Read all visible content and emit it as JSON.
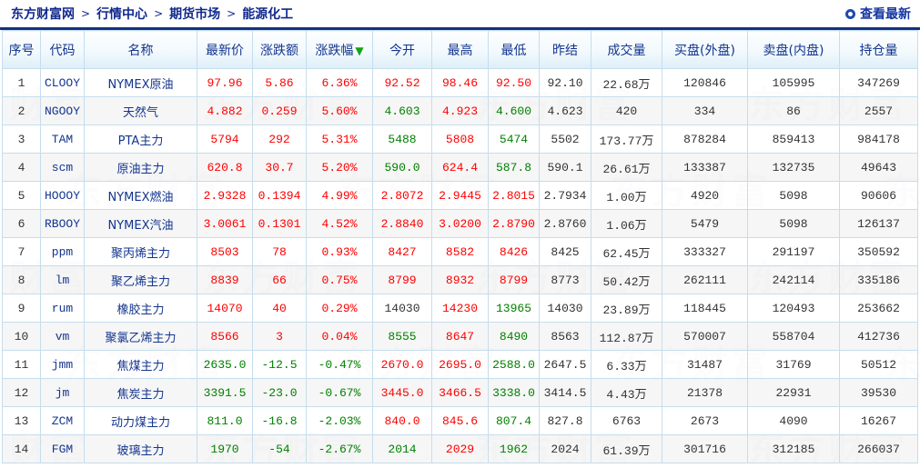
{
  "breadcrumb": {
    "separator": ">",
    "items": [
      "东方财富网",
      "行情中心",
      "期货市场",
      "能源化工"
    ]
  },
  "toolbar": {
    "refresh_label": "查看最新"
  },
  "watermark": {
    "text": "东方财富"
  },
  "colors": {
    "up": "#fe0000",
    "down": "#008000",
    "flat": "#333333",
    "link": "#13358e",
    "navy_line": "#16307c",
    "border": "#c5dded"
  },
  "table": {
    "columns": [
      {
        "label": "序号"
      },
      {
        "label": "代码"
      },
      {
        "label": "名称"
      },
      {
        "label": "最新价"
      },
      {
        "label": "涨跌额"
      },
      {
        "label": "涨跌幅",
        "sorted": "desc"
      },
      {
        "label": "今开"
      },
      {
        "label": "最高"
      },
      {
        "label": "最低"
      },
      {
        "label": "昨结"
      },
      {
        "label": "成交量"
      },
      {
        "label": "买盘(外盘)"
      },
      {
        "label": "卖盘(内盘)"
      },
      {
        "label": "持仓量"
      }
    ],
    "rows": [
      {
        "no": "1",
        "code": "CLOOY",
        "name": "NYMEX原油",
        "last": {
          "v": "97.96",
          "c": "up"
        },
        "change": {
          "v": "5.86",
          "c": "up"
        },
        "pct": {
          "v": "6.36%",
          "c": "up"
        },
        "open": {
          "v": "92.52",
          "c": "up"
        },
        "high": {
          "v": "98.46",
          "c": "up"
        },
        "low": {
          "v": "92.50",
          "c": "up"
        },
        "prev": "92.10",
        "volume": "22.68万",
        "buy": "120846",
        "sell": "105995",
        "oi": "347269"
      },
      {
        "no": "2",
        "code": "NGOOY",
        "name": "天然气",
        "last": {
          "v": "4.882",
          "c": "up"
        },
        "change": {
          "v": "0.259",
          "c": "up"
        },
        "pct": {
          "v": "5.60%",
          "c": "up"
        },
        "open": {
          "v": "4.603",
          "c": "down"
        },
        "high": {
          "v": "4.923",
          "c": "up"
        },
        "low": {
          "v": "4.600",
          "c": "down"
        },
        "prev": "4.623",
        "volume": "420",
        "buy": "334",
        "sell": "86",
        "oi": "2557"
      },
      {
        "no": "3",
        "code": "TAM",
        "name": "PTA主力",
        "last": {
          "v": "5794",
          "c": "up"
        },
        "change": {
          "v": "292",
          "c": "up"
        },
        "pct": {
          "v": "5.31%",
          "c": "up"
        },
        "open": {
          "v": "5488",
          "c": "down"
        },
        "high": {
          "v": "5808",
          "c": "up"
        },
        "low": {
          "v": "5474",
          "c": "down"
        },
        "prev": "5502",
        "volume": "173.77万",
        "buy": "878284",
        "sell": "859413",
        "oi": "984178"
      },
      {
        "no": "4",
        "code": "scm",
        "name": "原油主力",
        "last": {
          "v": "620.8",
          "c": "up"
        },
        "change": {
          "v": "30.7",
          "c": "up"
        },
        "pct": {
          "v": "5.20%",
          "c": "up"
        },
        "open": {
          "v": "590.0",
          "c": "down"
        },
        "high": {
          "v": "624.4",
          "c": "up"
        },
        "low": {
          "v": "587.8",
          "c": "down"
        },
        "prev": "590.1",
        "volume": "26.61万",
        "buy": "133387",
        "sell": "132735",
        "oi": "49643"
      },
      {
        "no": "5",
        "code": "HOOOY",
        "name": "NYMEX燃油",
        "last": {
          "v": "2.9328",
          "c": "up"
        },
        "change": {
          "v": "0.1394",
          "c": "up"
        },
        "pct": {
          "v": "4.99%",
          "c": "up"
        },
        "open": {
          "v": "2.8072",
          "c": "up"
        },
        "high": {
          "v": "2.9445",
          "c": "up"
        },
        "low": {
          "v": "2.8015",
          "c": "up"
        },
        "prev": "2.7934",
        "volume": "1.00万",
        "buy": "4920",
        "sell": "5098",
        "oi": "90606"
      },
      {
        "no": "6",
        "code": "RBOOY",
        "name": "NYMEX汽油",
        "last": {
          "v": "3.0061",
          "c": "up"
        },
        "change": {
          "v": "0.1301",
          "c": "up"
        },
        "pct": {
          "v": "4.52%",
          "c": "up"
        },
        "open": {
          "v": "2.8840",
          "c": "up"
        },
        "high": {
          "v": "3.0200",
          "c": "up"
        },
        "low": {
          "v": "2.8790",
          "c": "up"
        },
        "prev": "2.8760",
        "volume": "1.06万",
        "buy": "5479",
        "sell": "5098",
        "oi": "126137"
      },
      {
        "no": "7",
        "code": "ppm",
        "name": "聚丙烯主力",
        "last": {
          "v": "8503",
          "c": "up"
        },
        "change": {
          "v": "78",
          "c": "up"
        },
        "pct": {
          "v": "0.93%",
          "c": "up"
        },
        "open": {
          "v": "8427",
          "c": "up"
        },
        "high": {
          "v": "8582",
          "c": "up"
        },
        "low": {
          "v": "8426",
          "c": "up"
        },
        "prev": "8425",
        "volume": "62.45万",
        "buy": "333327",
        "sell": "291197",
        "oi": "350592"
      },
      {
        "no": "8",
        "code": "lm",
        "name": "聚乙烯主力",
        "last": {
          "v": "8839",
          "c": "up"
        },
        "change": {
          "v": "66",
          "c": "up"
        },
        "pct": {
          "v": "0.75%",
          "c": "up"
        },
        "open": {
          "v": "8799",
          "c": "up"
        },
        "high": {
          "v": "8932",
          "c": "up"
        },
        "low": {
          "v": "8799",
          "c": "up"
        },
        "prev": "8773",
        "volume": "50.42万",
        "buy": "262111",
        "sell": "242114",
        "oi": "335186"
      },
      {
        "no": "9",
        "code": "rum",
        "name": "橡胶主力",
        "last": {
          "v": "14070",
          "c": "up"
        },
        "change": {
          "v": "40",
          "c": "up"
        },
        "pct": {
          "v": "0.29%",
          "c": "up"
        },
        "open": {
          "v": "14030",
          "c": "flat"
        },
        "high": {
          "v": "14230",
          "c": "up"
        },
        "low": {
          "v": "13965",
          "c": "down"
        },
        "prev": "14030",
        "volume": "23.89万",
        "buy": "118445",
        "sell": "120493",
        "oi": "253662"
      },
      {
        "no": "10",
        "code": "vm",
        "name": "聚氯乙烯主力",
        "last": {
          "v": "8566",
          "c": "up"
        },
        "change": {
          "v": "3",
          "c": "up"
        },
        "pct": {
          "v": "0.04%",
          "c": "up"
        },
        "open": {
          "v": "8555",
          "c": "down"
        },
        "high": {
          "v": "8647",
          "c": "up"
        },
        "low": {
          "v": "8490",
          "c": "down"
        },
        "prev": "8563",
        "volume": "112.87万",
        "buy": "570007",
        "sell": "558704",
        "oi": "412736"
      },
      {
        "no": "11",
        "code": "jmm",
        "name": "焦煤主力",
        "last": {
          "v": "2635.0",
          "c": "down"
        },
        "change": {
          "v": "-12.5",
          "c": "down"
        },
        "pct": {
          "v": "-0.47%",
          "c": "down"
        },
        "open": {
          "v": "2670.0",
          "c": "up"
        },
        "high": {
          "v": "2695.0",
          "c": "up"
        },
        "low": {
          "v": "2588.0",
          "c": "down"
        },
        "prev": "2647.5",
        "volume": "6.33万",
        "buy": "31487",
        "sell": "31769",
        "oi": "50512"
      },
      {
        "no": "12",
        "code": "jm",
        "name": "焦炭主力",
        "last": {
          "v": "3391.5",
          "c": "down"
        },
        "change": {
          "v": "-23.0",
          "c": "down"
        },
        "pct": {
          "v": "-0.67%",
          "c": "down"
        },
        "open": {
          "v": "3445.0",
          "c": "up"
        },
        "high": {
          "v": "3466.5",
          "c": "up"
        },
        "low": {
          "v": "3338.0",
          "c": "down"
        },
        "prev": "3414.5",
        "volume": "4.43万",
        "buy": "21378",
        "sell": "22931",
        "oi": "39530"
      },
      {
        "no": "13",
        "code": "ZCM",
        "name": "动力煤主力",
        "last": {
          "v": "811.0",
          "c": "down"
        },
        "change": {
          "v": "-16.8",
          "c": "down"
        },
        "pct": {
          "v": "-2.03%",
          "c": "down"
        },
        "open": {
          "v": "840.0",
          "c": "up"
        },
        "high": {
          "v": "845.6",
          "c": "up"
        },
        "low": {
          "v": "807.4",
          "c": "down"
        },
        "prev": "827.8",
        "volume": "6763",
        "buy": "2673",
        "sell": "4090",
        "oi": "16267"
      },
      {
        "no": "14",
        "code": "FGM",
        "name": "玻璃主力",
        "last": {
          "v": "1970",
          "c": "down"
        },
        "change": {
          "v": "-54",
          "c": "down"
        },
        "pct": {
          "v": "-2.67%",
          "c": "down"
        },
        "open": {
          "v": "2014",
          "c": "down"
        },
        "high": {
          "v": "2029",
          "c": "up"
        },
        "low": {
          "v": "1962",
          "c": "down"
        },
        "prev": "2024",
        "volume": "61.39万",
        "buy": "301716",
        "sell": "312185",
        "oi": "266037"
      }
    ]
  }
}
